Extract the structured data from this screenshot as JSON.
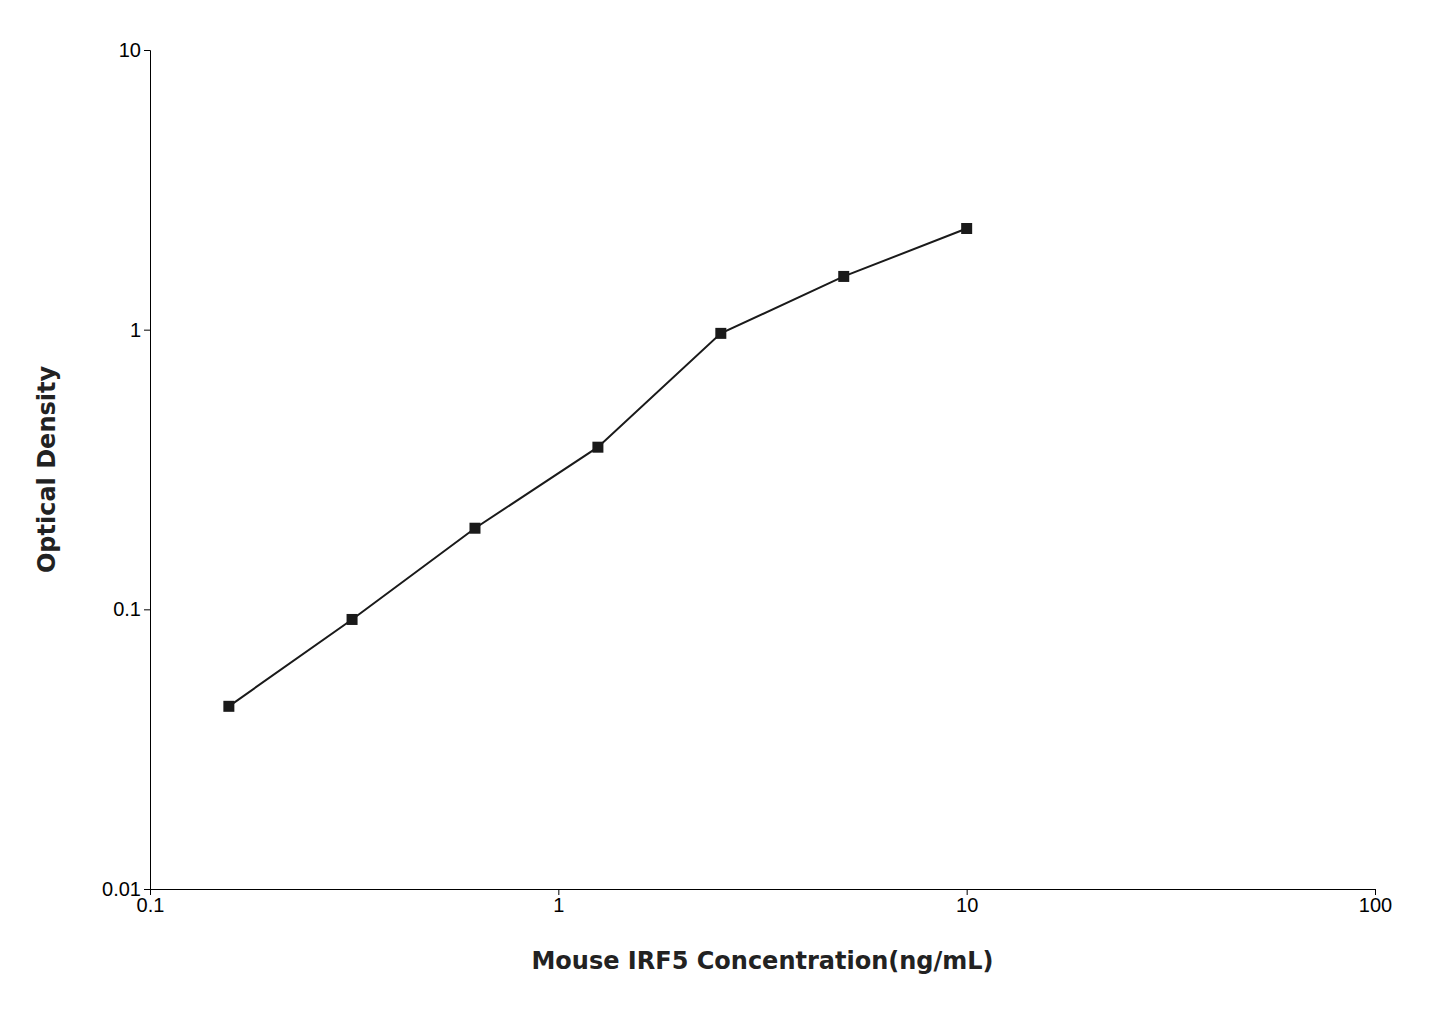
{
  "chart_data": {
    "type": "line",
    "x": [
      0.156,
      0.3125,
      0.625,
      1.25,
      2.5,
      5.0,
      10.0
    ],
    "values": [
      0.045,
      0.092,
      0.195,
      0.38,
      0.97,
      1.55,
      2.3
    ],
    "xlabel": "Mouse IRF5 Concentration(ng/mL)",
    "ylabel": "Optical Density",
    "log": true,
    "xlim": [
      0.1,
      100
    ],
    "ylim": [
      0.01,
      10
    ],
    "xticks": [
      0.1,
      1,
      10,
      100
    ],
    "yticks": [
      0.01,
      0.1,
      1,
      10
    ],
    "color": "#1a1a1a",
    "marker": "square",
    "grid": false
  }
}
